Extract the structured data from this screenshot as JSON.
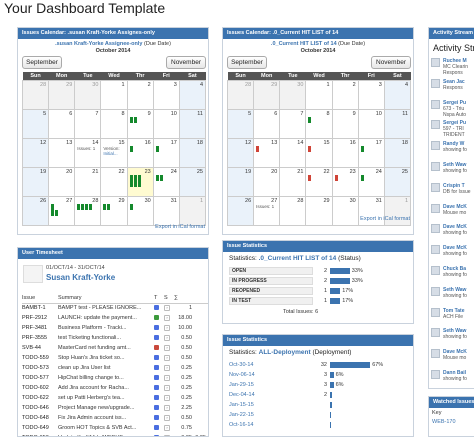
{
  "page": {
    "title": "Your Dashboard Template"
  },
  "cal1": {
    "header": "Issues Calendar: .susan Kraft-Yorke Assignes-only",
    "filter_link": ".susan Kraft-Yorke Assignee-only",
    "filter_suffix": "(Due Date)",
    "month": "October 2014",
    "prev": "September",
    "next": "November",
    "days": [
      "Sun",
      "Mon",
      "Tue",
      "Wed",
      "Thr",
      "Fri",
      "Sat"
    ],
    "weeks": [
      [
        "28",
        "29",
        "30",
        "1",
        "2",
        "3",
        "4"
      ],
      [
        "5",
        "6",
        "7",
        "8",
        "9",
        "10",
        "11"
      ],
      [
        "12",
        "13",
        "14",
        "15",
        "16",
        "17",
        "18"
      ],
      [
        "19",
        "20",
        "21",
        "22",
        "23",
        "24",
        "25"
      ],
      [
        "26",
        "27",
        "28",
        "29",
        "30",
        "31",
        "1"
      ]
    ],
    "note_issues": "Issues: 1",
    "note_version": "Version:",
    "note_initial": "Initial...",
    "ical": "Export in iCal format"
  },
  "cal2": {
    "header": "Issues Calendar: .0_Current HIT LIST of 14",
    "filter_link": ".0_Current HIT LIST of 14",
    "filter_suffix": "(Due Date)",
    "month": "October 2014",
    "prev": "September",
    "next": "November",
    "days": [
      "Sun",
      "Mon",
      "Tue",
      "Wed",
      "Thr",
      "Fri",
      "Sat"
    ],
    "weeks": [
      [
        "28",
        "29",
        "30",
        "1",
        "2",
        "3",
        "4"
      ],
      [
        "5",
        "6",
        "7",
        "8",
        "9",
        "10",
        "11"
      ],
      [
        "12",
        "13",
        "14",
        "15",
        "16",
        "17",
        "18"
      ],
      [
        "19",
        "20",
        "21",
        "22",
        "23",
        "24",
        "25"
      ],
      [
        "26",
        "27",
        "28",
        "29",
        "30",
        "31",
        "1"
      ]
    ],
    "note_issues": "Issues: 1",
    "ical": "Export in iCal format"
  },
  "timesheet": {
    "header": "User Timesheet",
    "period": "01/OCT/14 - 31/OCT/14",
    "user": "Susan Kraft-Yorke",
    "columns": [
      "Issue",
      "Summary",
      "T",
      "S",
      "∑",
      ""
    ],
    "rows": [
      {
        "key": "BAMBT-1",
        "summary": "BAMPT test - PLEASE IGNORE...",
        "t": "b",
        "sum": "1",
        "extra": ""
      },
      {
        "key": "PRF-2912",
        "summary": "LAUNCH: update the payment...",
        "t": "g",
        "sum": "18.00",
        "extra": ""
      },
      {
        "key": "PRF-3481",
        "summary": "Business Platform - Tracki...",
        "t": "b",
        "sum": "10.00",
        "extra": ""
      },
      {
        "key": "PRF-3555",
        "summary": "test Ticketing functionali...",
        "t": "b",
        "sum": "0.50",
        "extra": ""
      },
      {
        "key": "SVB-44",
        "summary": "MasterCard net funding amt...",
        "t": "r",
        "sum": "0.50",
        "extra": ""
      },
      {
        "key": "TODO-559",
        "summary": "Stop Huan's Jira ticket so...",
        "t": "b",
        "sum": "0.50",
        "extra": ""
      },
      {
        "key": "TODO-573",
        "summary": "clean up Jira User list",
        "t": "b",
        "sum": "0.25",
        "extra": ""
      },
      {
        "key": "TODO-577",
        "summary": "HipChat billing change to...",
        "t": "b",
        "sum": "0.25",
        "extra": ""
      },
      {
        "key": "TODO-602",
        "summary": "Add Jira account for Racha...",
        "t": "b",
        "sum": "0.25",
        "extra": ""
      },
      {
        "key": "TODO-622",
        "summary": "set up Patti Herberg's tea...",
        "t": "b",
        "sum": "0.25",
        "extra": ""
      },
      {
        "key": "TODO-646",
        "summary": "Project Manage new/upgrade...",
        "t": "b",
        "sum": "2.25",
        "extra": ""
      },
      {
        "key": "TODO-648",
        "summary": "Fix Jira Admin account iss...",
        "t": "b",
        "sum": "0.50",
        "extra": ""
      },
      {
        "key": "TODO-649",
        "summary": "Groom HOT Topics & SVB Act...",
        "t": "b",
        "sum": "0.75",
        "extra": ""
      },
      {
        "key": "TODO-650",
        "summary": "Update Kraft/Vida/WEBUB...",
        "t": "b",
        "sum": "0.25",
        "extra": "0.25"
      }
    ]
  },
  "stats1": {
    "header": "Issue Statistics",
    "title_prefix": "Statistics: ",
    "title_link": ".0_Current HIT LIST of 14",
    "title_suffix": "(Status)",
    "rows": [
      {
        "label": "OPEN",
        "count": "2",
        "pct": "33%",
        "value": 33
      },
      {
        "label": "IN PROGRESS",
        "count": "2",
        "pct": "33%",
        "value": 33
      },
      {
        "label": "REOPENED",
        "count": "1",
        "pct": "17%",
        "value": 17
      },
      {
        "label": "IN TEST",
        "count": "1",
        "pct": "17%",
        "value": 17
      }
    ],
    "total_label": "Total Issues:",
    "total": "6"
  },
  "stats2": {
    "header": "Issue Statistics",
    "title_prefix": "Statistics: ",
    "title_link": "ALL-Deployment",
    "title_suffix": "(Deployment)",
    "rows": [
      {
        "label": "Oct-30-14",
        "count": "32",
        "pct": "67%",
        "value": 67
      },
      {
        "label": "Nov-06-14",
        "count": "3",
        "pct": "6%",
        "value": 6
      },
      {
        "label": "Jan-29-15",
        "count": "3",
        "pct": "6%",
        "value": 6
      },
      {
        "label": "Dec-04-14",
        "count": "2",
        "pct": "",
        "value": 4
      },
      {
        "label": "Jan-15-15",
        "count": "",
        "pct": "",
        "value": 4
      },
      {
        "label": "Jan-22-15",
        "count": "",
        "pct": "",
        "value": 2
      },
      {
        "label": "Oct-16-14",
        "count": "",
        "pct": "",
        "value": 2
      }
    ]
  },
  "activity": {
    "header": "Activity Stream",
    "title": "Activity Str",
    "items": [
      {
        "who": "Ruchee M",
        "l2": "MC Clearin",
        "l3": "Respons"
      },
      {
        "who": "Sean Jac",
        "l2": "Respons",
        "l3": ""
      },
      {
        "who": "Sergei Pu",
        "l2": "673 - Triu",
        "l3": "Nspa Auto"
      },
      {
        "who": "Sergei Pu",
        "l2": "597 - TRI",
        "l3": "TRIDENT"
      },
      {
        "who": "Randy W",
        "l2": "showing fo",
        "l3": ""
      },
      {
        "who": "Seth Waw",
        "l2": "showing fo",
        "l3": ""
      },
      {
        "who": "Crispin T",
        "l2": "DB for Issue",
        "l3": ""
      },
      {
        "who": "Dave McK",
        "l2": "Mouse mo",
        "l3": ""
      },
      {
        "who": "Dave McK",
        "l2": "showing fo",
        "l3": ""
      },
      {
        "who": "Dave McK",
        "l2": "showing fo",
        "l3": ""
      },
      {
        "who": "Chuck Ba",
        "l2": "showing fo",
        "l3": ""
      },
      {
        "who": "Seth Waw",
        "l2": "showing fo",
        "l3": ""
      },
      {
        "who": "Tom Tate",
        "l2": "ACH File",
        "l3": ""
      },
      {
        "who": "Seth Waw",
        "l2": "showing fo",
        "l3": ""
      },
      {
        "who": "Dave McK",
        "l2": "Mouse mo",
        "l3": ""
      },
      {
        "who": "Dann Bail",
        "l2": "showing fo",
        "l3": ""
      }
    ]
  },
  "watched": {
    "header": "Watched Issues",
    "col_key": "Key",
    "row_key": "WEB-170"
  }
}
